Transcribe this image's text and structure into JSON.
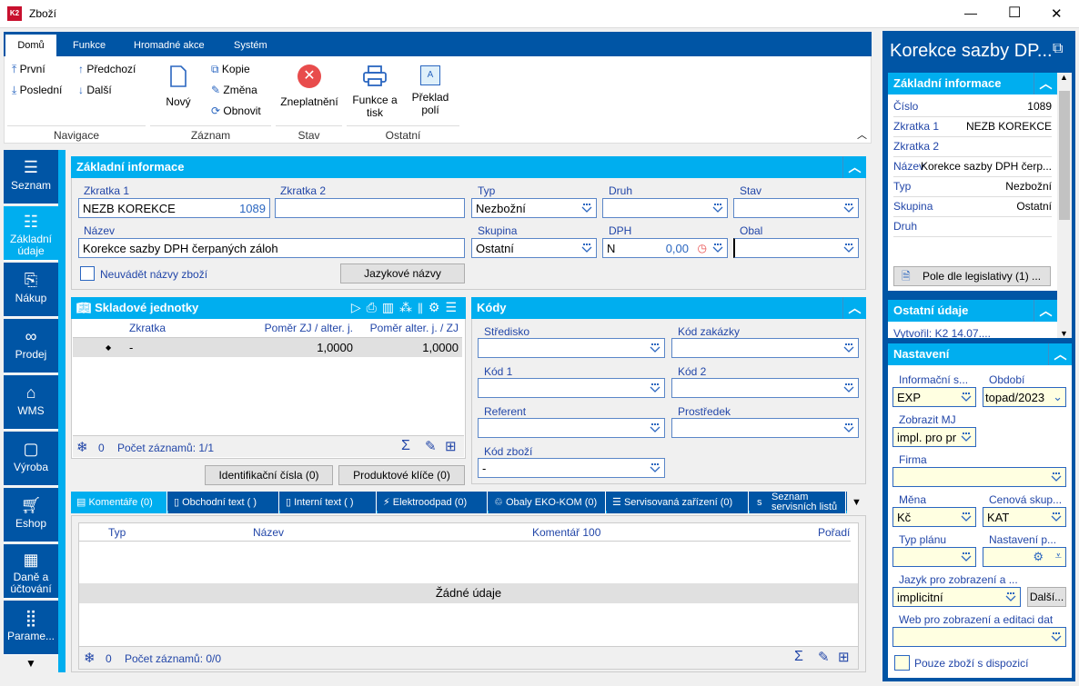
{
  "window": {
    "title": "Zboží",
    "minimize": "—",
    "maximize": "☐",
    "close": "✕"
  },
  "ribbon": {
    "tabs": [
      "Domů",
      "Funkce",
      "Hromadné akce",
      "Systém"
    ],
    "nav": {
      "first": "První",
      "last": "Poslední",
      "prev": "Předchozí",
      "next": "Další",
      "group": "Navigace"
    },
    "record": {
      "new": "Nový",
      "copy": "Kopie",
      "edit": "Změna",
      "refresh": "Obnovit",
      "group": "Záznam"
    },
    "state": {
      "invalidate": "Zneplatnění",
      "group": "Stav"
    },
    "other": {
      "print": "Funkce a tisk",
      "translate": "Překlad polí",
      "group": "Ostatní"
    }
  },
  "sidebar": {
    "items": [
      "Seznam",
      "Základní údaje",
      "Nákup",
      "Prodej",
      "WMS",
      "Výroba",
      "Eshop",
      "Daně a účtování",
      "Parame..."
    ],
    "active": 1
  },
  "basic": {
    "title": "Základní informace",
    "zkratka1": {
      "label": "Zkratka 1",
      "value": "NEZB KOREKCE",
      "number": "1089"
    },
    "zkratka2": {
      "label": "Zkratka 2",
      "value": ""
    },
    "typ": {
      "label": "Typ",
      "value": "Nezbožní"
    },
    "druh": {
      "label": "Druh",
      "value": ""
    },
    "stav": {
      "label": "Stav",
      "value": ""
    },
    "nazev": {
      "label": "Název",
      "value": "Korekce sazby DPH čerpaných záloh"
    },
    "skupina": {
      "label": "Skupina",
      "value": "Ostatní"
    },
    "dph": {
      "label": "DPH",
      "value": "N",
      "rate": "0,00"
    },
    "obal": {
      "label": "Obal",
      "value": ""
    },
    "checkbox": "Neuvádět názvy zboží",
    "lang_button": "Jazykové názvy"
  },
  "units": {
    "title": "Skladové jednotky",
    "columns": [
      "Zkratka",
      "Poměr ZJ / alter. j.",
      "Poměr alter. j. / ZJ"
    ],
    "rows": [
      {
        "marker": "◆",
        "zkratka": "-",
        "ratio1": "1,0000",
        "ratio2": "1,0000"
      }
    ],
    "footer": {
      "count": "0",
      "records": "Počet záznamů: 1/1"
    },
    "buttons": [
      "Identifikační čísla (0)",
      "Produktové klíče (0)"
    ]
  },
  "codes": {
    "title": "Kódy",
    "fields": [
      {
        "label": "Středisko",
        "value": ""
      },
      {
        "label": "Kód zakázky",
        "value": ""
      },
      {
        "label": "Kód 1",
        "value": ""
      },
      {
        "label": "Kód 2",
        "value": ""
      },
      {
        "label": "Referent",
        "value": ""
      },
      {
        "label": "Prostředek",
        "value": ""
      },
      {
        "label": "Kód zboží",
        "value": "-"
      }
    ]
  },
  "bottom_tabs": [
    "Komentáře (0)",
    "Obchodní text ( )",
    "Interní text ( )",
    "Elektroodpad (0)",
    "Obaly EKO-KOM (0)",
    "Servisovaná zařízení (0)",
    "Seznam servisních listů"
  ],
  "comments": {
    "columns": [
      "Typ",
      "Název",
      "Komentář 100",
      "Pořadí"
    ],
    "empty": "Žádné údaje",
    "footer": {
      "count": "0",
      "records": "Počet záznamů: 0/0"
    }
  },
  "right": {
    "title": "Korekce sazby DP...",
    "basic_title": "Základní informace",
    "rows": [
      {
        "k": "Číslo",
        "v": "1089"
      },
      {
        "k": "Zkratka 1",
        "v": "NEZB KOREKCE"
      },
      {
        "k": "Zkratka 2",
        "v": ""
      },
      {
        "k": "Název",
        "v": "Korekce sazby DPH čerp..."
      },
      {
        "k": "Typ",
        "v": "Nezbožní"
      },
      {
        "k": "Skupina",
        "v": "Ostatní"
      },
      {
        "k": "Druh",
        "v": ""
      }
    ],
    "legislation_button": "Pole dle legislativy (1) ...",
    "other_title": "Ostatní údaje",
    "created": "Vytvořil: K2 14.07....",
    "settings": {
      "title": "Nastavení",
      "info_label": "Informační s...",
      "info_value": "EXP",
      "period_label": "Období",
      "period_value": "topad/2023",
      "mj_label": "Zobrazit MJ",
      "mj_value": "impl. pro pr",
      "firm_label": "Firma",
      "firm_value": "",
      "currency_label": "Měna",
      "currency_value": "Kč",
      "pricegroup_label": "Cenová skup...",
      "pricegroup_value": "KAT",
      "plan_label": "Typ plánu",
      "plan_value": "",
      "setting_label": "Nastavení p...",
      "setting_value": "",
      "lang_label": "Jazyk pro zobrazení a ...",
      "lang_value": "implicitní",
      "more_button": "Další...",
      "web_label": "Web pro zobrazení a editaci dat",
      "web_value": "",
      "checkbox": "Pouze zboží s dispozicí"
    }
  },
  "colors": {
    "dark_blue": "#0055a5",
    "light_blue": "#00aeef",
    "label": "#2246a8",
    "input_yellow": "#ffffe1",
    "invalidate_red": "#e84c4c"
  }
}
